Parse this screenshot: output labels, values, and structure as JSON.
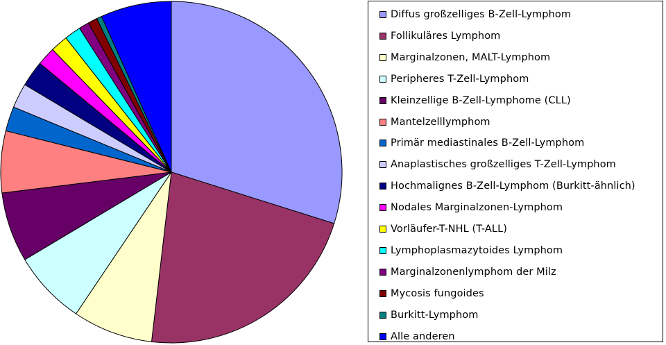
{
  "chart_data": {
    "type": "pie",
    "start_angle_deg": 90,
    "direction": "clockwise",
    "slices": [
      {
        "label": "Diffus großzelliges B-Zell-Lymphom",
        "value": 30.7,
        "color": "#9999ff"
      },
      {
        "label": "Follikuläres Lymphom",
        "value": 22.6,
        "color": "#993366"
      },
      {
        "label": "Marginalzonen, MALT-Lymphom",
        "value": 7.8,
        "color": "#ffffcc"
      },
      {
        "label": "Peripheres T-Zell-Lymphom",
        "value": 7.2,
        "color": "#ccffff"
      },
      {
        "label": "Kleinzellige B-Zell-Lymphome (CLL)",
        "value": 6.8,
        "color": "#660066"
      },
      {
        "label": "Mantelzelllymphom",
        "value": 6.0,
        "color": "#ff8080"
      },
      {
        "label": "Primär mediastinales B-Zell-Lymphom",
        "value": 2.4,
        "color": "#0066cc"
      },
      {
        "label": "Anaplastisches großzelliges T-Zell-Lymphom",
        "value": 2.4,
        "color": "#ccccff"
      },
      {
        "label": "Hochmalignes B-Zell-Lymphom (Burkitt-ähnlich)",
        "value": 2.5,
        "color": "#000080"
      },
      {
        "label": "Nodales Marginalzonen-Lymphom",
        "value": 1.8,
        "color": "#ff00ff"
      },
      {
        "label": "Vorläufer-T-NHL (T-ALL)",
        "value": 1.7,
        "color": "#ffff00"
      },
      {
        "label": "Lymphoplasmazytoides Lymphom",
        "value": 1.6,
        "color": "#00ffff"
      },
      {
        "label": "Marginalzonenlymphom der Milz",
        "value": 1.0,
        "color": "#800080"
      },
      {
        "label": "Mycosis fungoides",
        "value": 0.9,
        "color": "#800000"
      },
      {
        "label": "Burkitt-Lymphom",
        "value": 0.5,
        "color": "#008080"
      },
      {
        "label": "Alle anderen",
        "value": 6.9,
        "color": "#0000ff"
      }
    ],
    "legend_position": "right"
  }
}
